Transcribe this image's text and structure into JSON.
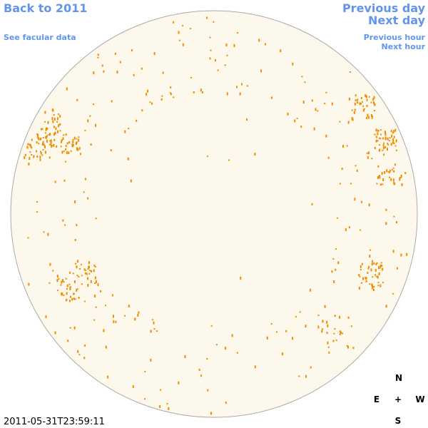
{
  "links": {
    "back": "Back to 2011",
    "facular": "See facular data",
    "previous_day": "Previous day",
    "next_day": "Next day",
    "previous_hour": "Previous hour",
    "next_hour": "Next hour"
  },
  "compass": {
    "north": "N",
    "east": "E",
    "center": "+",
    "west": "W",
    "south": "S"
  },
  "timestamp": "2011-05-31T23:59:11"
}
